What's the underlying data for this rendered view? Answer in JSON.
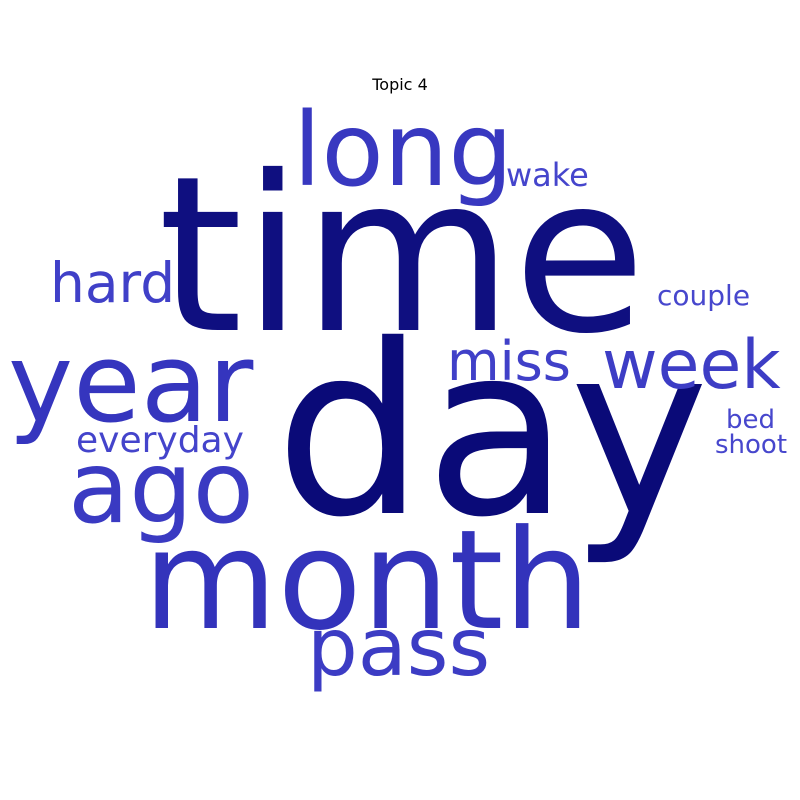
{
  "title": "Topic 4",
  "colors": {
    "background": "#ffffff",
    "dark": "#0a0a78",
    "medium": "#3535be",
    "light": "#4444cc"
  },
  "words": [
    {
      "text": "time",
      "color": "#0f0f80"
    },
    {
      "text": "day",
      "color": "#0a0a78"
    },
    {
      "text": "month",
      "color": "#3333bb"
    },
    {
      "text": "year",
      "color": "#3535be"
    },
    {
      "text": "long",
      "color": "#3838c0"
    },
    {
      "text": "ago",
      "color": "#3a3ac2"
    },
    {
      "text": "pass",
      "color": "#3c3cc4"
    },
    {
      "text": "week",
      "color": "#3d3dc5"
    },
    {
      "text": "miss",
      "color": "#4040c8"
    },
    {
      "text": "hard",
      "color": "#4040c8"
    },
    {
      "text": "everyday",
      "color": "#4444cb"
    },
    {
      "text": "wake",
      "color": "#4545cc"
    },
    {
      "text": "couple",
      "color": "#4747cd"
    },
    {
      "text": "bed",
      "color": "#4747cd"
    },
    {
      "text": "shoot",
      "color": "#4747cd"
    }
  ]
}
